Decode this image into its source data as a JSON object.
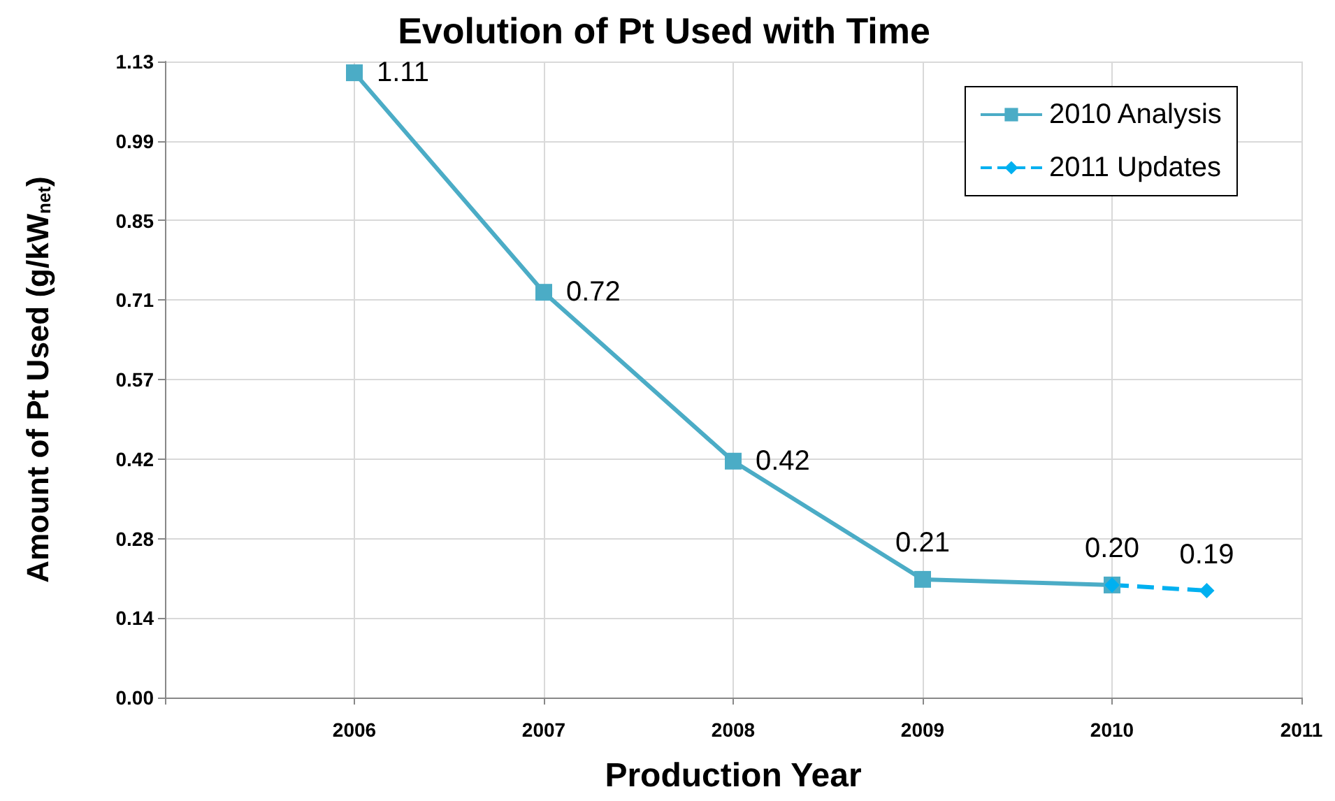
{
  "chart_data": {
    "type": "line",
    "title": "Evolution of Pt Used with Time",
    "xlabel": "Production Year",
    "ylabel": "Amount of Pt Used (g/kW$_{net}$)",
    "xlim": [
      2005,
      2011
    ],
    "xticks": [
      {
        "value": 2005,
        "label": null
      },
      2006,
      2007,
      2008,
      2009,
      2010,
      2011
    ],
    "ylim": [
      0,
      1.13
    ],
    "yticks": [
      {
        "value": 0,
        "label": "0.00"
      },
      {
        "value": 0.14125,
        "label": "0.14"
      },
      {
        "value": 0.2825,
        "label": "0.28"
      },
      {
        "value": 0.42375,
        "label": "0.42"
      },
      {
        "value": 0.565,
        "label": "0.57"
      },
      {
        "value": 0.70625,
        "label": "0.71"
      },
      {
        "value": 0.8475,
        "label": "0.85"
      },
      {
        "value": 0.98875,
        "label": "0.99"
      },
      {
        "value": 1.13,
        "label": "1.13"
      }
    ],
    "grid": true,
    "legend": "top right",
    "series": [
      {
        "name": "2010 Analysis",
        "color": "#4bacc6",
        "marker": "square",
        "line_style": "solid",
        "x": [
          2006,
          2007,
          2008,
          2009,
          2010
        ],
        "values": [
          1.11,
          0.72,
          0.42,
          0.21,
          0.2
        ],
        "value_labels": [
          "1.11",
          "0.72",
          "0.42",
          "0.21",
          "0.20"
        ]
      },
      {
        "name": "2011 Updates",
        "color": "#00b0f0",
        "marker": "diamond",
        "line_style": "dashed",
        "x": [
          2010,
          2010.5
        ],
        "values": [
          0.2,
          0.19
        ],
        "value_labels": [
          null,
          "0.19"
        ]
      }
    ]
  }
}
